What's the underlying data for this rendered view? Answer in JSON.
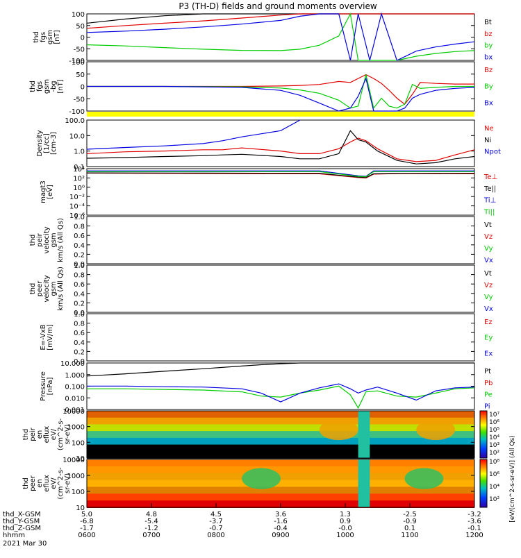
{
  "title": "P3 (TH-D) fields and ground moments overview",
  "date": "2021 Mar 30",
  "colors": {
    "black": "#000000",
    "red": "#e00000",
    "green": "#00cc00",
    "blue": "#0000e0",
    "yellow": "#ffff00"
  },
  "chart_data": [
    {
      "type": "line",
      "id": "fgs_gsm",
      "ylabel": [
        "thd",
        "fgs",
        "gsm",
        "[nT]"
      ],
      "ylim": [
        -100,
        100
      ],
      "yticks": [
        "100",
        "50",
        "0",
        "-50",
        "-100"
      ],
      "legend": [
        {
          "name": "Bt",
          "color": "black"
        },
        {
          "name": "bz",
          "color": "red"
        },
        {
          "name": "by",
          "color": "green"
        },
        {
          "name": "bx",
          "color": "blue"
        }
      ],
      "x": [
        0,
        0.1,
        0.2,
        0.3,
        0.4,
        0.5,
        0.55,
        0.6,
        0.65,
        0.68,
        0.7,
        0.73,
        0.76,
        0.8,
        0.85,
        0.9,
        0.95,
        1.0
      ],
      "series": [
        {
          "name": "Bt",
          "color": "black",
          "values": [
            60,
            78,
            92,
            100,
            100,
            100,
            100,
            100,
            100,
            100,
            100,
            100,
            100,
            100,
            100,
            100,
            100,
            100
          ]
        },
        {
          "name": "bz",
          "color": "red",
          "values": [
            38,
            50,
            60,
            70,
            82,
            95,
            100,
            100,
            100,
            100,
            100,
            100,
            100,
            100,
            100,
            100,
            100,
            100
          ]
        },
        {
          "name": "by",
          "color": "green",
          "values": [
            -33,
            -38,
            -45,
            -52,
            -57,
            -58,
            -52,
            -35,
            5,
            100,
            -100,
            -100,
            -100,
            -100,
            -82,
            -70,
            -62,
            -58
          ]
        },
        {
          "name": "bx",
          "color": "blue",
          "values": [
            20,
            26,
            34,
            44,
            56,
            72,
            90,
            100,
            100,
            -100,
            100,
            -100,
            100,
            -100,
            -60,
            -42,
            -30,
            -20
          ]
        }
      ]
    },
    {
      "type": "line",
      "id": "fgs_gsm_bg",
      "ylabel": [
        "thd",
        "fgs",
        "gsm",
        "-bg",
        "[nT]"
      ],
      "ylim": [
        -125,
        125
      ],
      "yticks": [
        "100",
        "50",
        "0",
        "-50",
        "-100"
      ],
      "legend": [
        {
          "name": "Bz",
          "color": "red"
        },
        {
          "name": "By",
          "color": "green"
        },
        {
          "name": "Bx",
          "color": "blue"
        }
      ],
      "x": [
        0,
        0.2,
        0.4,
        0.5,
        0.55,
        0.6,
        0.65,
        0.68,
        0.7,
        0.72,
        0.74,
        0.76,
        0.78,
        0.8,
        0.82,
        0.84,
        0.86,
        0.9,
        0.95,
        1.0
      ],
      "series": [
        {
          "name": "Bz",
          "color": "red",
          "values": [
            0,
            0,
            0,
            2,
            5,
            10,
            25,
            20,
            40,
            60,
            40,
            15,
            -20,
            -60,
            -90,
            -40,
            20,
            15,
            12,
            12
          ]
        },
        {
          "name": "By",
          "color": "green",
          "values": [
            0,
            0,
            -2,
            -8,
            -18,
            -35,
            -70,
            -110,
            -100,
            60,
            -110,
            -60,
            -100,
            -110,
            -90,
            10,
            -10,
            -5,
            0,
            0
          ]
        },
        {
          "name": "Bx",
          "color": "blue",
          "values": [
            0,
            0,
            -5,
            -20,
            -45,
            -85,
            -125,
            -110,
            -50,
            40,
            -125,
            -125,
            -125,
            -125,
            -110,
            -60,
            -40,
            -20,
            -10,
            -5
          ]
        }
      ]
    },
    {
      "type": "line",
      "id": "density",
      "ylog": true,
      "ylabel": [
        "Density",
        "[1/cc]",
        "[cm-3]"
      ],
      "ylim": [
        0.05,
        200
      ],
      "yticks": [
        "100.0",
        "10.0",
        "1.0",
        "0.1"
      ],
      "legend": [
        {
          "name": "Ne",
          "color": "red"
        },
        {
          "name": "Ni",
          "color": "black"
        },
        {
          "name": "Npot",
          "color": "blue"
        },
        {
          "name": "",
          "color": "black"
        }
      ],
      "x": [
        0,
        0.1,
        0.2,
        0.3,
        0.35,
        0.4,
        0.5,
        0.55,
        0.6,
        0.65,
        0.68,
        0.7,
        0.72,
        0.75,
        0.8,
        0.85,
        0.9,
        0.95,
        1.0
      ],
      "series": [
        {
          "name": "Ne",
          "color": "red",
          "values": [
            0.5,
            0.7,
            0.8,
            1.0,
            1.0,
            1.4,
            0.8,
            0.5,
            0.5,
            1.2,
            4,
            8,
            5,
            1.2,
            0.2,
            0.12,
            0.15,
            0.4,
            1.0
          ]
        },
        {
          "name": "Ni",
          "color": "black",
          "values": [
            0.22,
            0.25,
            0.3,
            0.35,
            0.4,
            0.45,
            0.3,
            0.2,
            0.2,
            0.5,
            30,
            6,
            4,
            0.8,
            0.15,
            0.08,
            0.1,
            0.2,
            0.3
          ]
        },
        {
          "name": "Npot",
          "color": "blue",
          "values": [
            1.1,
            1.5,
            2,
            3,
            5,
            10,
            30,
            200,
            null,
            null,
            null,
            null,
            null,
            null,
            null,
            null,
            null,
            null,
            null
          ]
        }
      ]
    },
    {
      "type": "line",
      "id": "magt3",
      "ylog": true,
      "ylabel": [
        "magt3",
        "[eV]"
      ],
      "ylim": [
        1e-07,
        10000.0
      ],
      "yticks": [
        "10⁴",
        "10²",
        "10⁰",
        "10⁻²",
        "10⁻⁴",
        "10⁻⁶"
      ],
      "legend": [
        {
          "name": "Te⊥",
          "color": "red"
        },
        {
          "name": "Te||",
          "color": "black"
        },
        {
          "name": "Ti⊥",
          "color": "blue"
        },
        {
          "name": "Ti||",
          "color": "green"
        }
      ],
      "x": [
        0,
        0.3,
        0.6,
        0.7,
        0.72,
        0.74,
        0.78,
        0.82,
        1.0
      ],
      "series": [
        {
          "name": "Te⊥",
          "color": "red",
          "values": [
            900,
            700,
            600,
            80,
            60,
            500,
            600,
            700,
            600
          ]
        },
        {
          "name": "Te||",
          "color": "black",
          "values": [
            1000,
            900,
            800,
            100,
            80,
            600,
            700,
            800,
            800
          ]
        },
        {
          "name": "Ti⊥",
          "color": "blue",
          "values": [
            3000,
            3000,
            3000,
            200,
            150,
            3000,
            3000,
            3000,
            3000
          ]
        },
        {
          "name": "Ti||",
          "color": "green",
          "values": [
            2000,
            2000,
            2000,
            150,
            120,
            2000,
            2000,
            2000,
            2000
          ]
        }
      ]
    },
    {
      "type": "line",
      "id": "peir_velocity",
      "ylabel": [
        "thd",
        "peir",
        "velocity",
        "gsm",
        "km/s (All Qs)"
      ],
      "ylim": [
        0,
        1
      ],
      "yticks": [
        "1.0",
        "0.8",
        "0.6",
        "0.4",
        "0.2",
        "0.0"
      ],
      "legend": [
        {
          "name": "Vt",
          "color": "black"
        },
        {
          "name": "Vz",
          "color": "red"
        },
        {
          "name": "Vy",
          "color": "green"
        },
        {
          "name": "Vx",
          "color": "blue"
        }
      ],
      "series": []
    },
    {
      "type": "line",
      "id": "peer_velocity",
      "ylabel": [
        "thd",
        "peer",
        "velocity",
        "gsm",
        "km/s (All Qs)"
      ],
      "ylim": [
        0,
        1
      ],
      "yticks": [
        "1.0",
        "0.8",
        "0.6",
        "0.4",
        "0.2",
        "0.0"
      ],
      "legend": [
        {
          "name": "Vt",
          "color": "black"
        },
        {
          "name": "Vz",
          "color": "red"
        },
        {
          "name": "Vy",
          "color": "green"
        },
        {
          "name": "Vx",
          "color": "blue"
        }
      ],
      "series": []
    },
    {
      "type": "line",
      "id": "e_field",
      "ylabel": [
        "E=-VxB",
        "[mV/m]"
      ],
      "ylim": [
        0,
        1
      ],
      "yticks": [
        "1.0",
        "0.8",
        "0.6",
        "0.4",
        "0.2",
        "0.0"
      ],
      "legend": [
        {
          "name": "Ez",
          "color": "red"
        },
        {
          "name": "Ey",
          "color": "green"
        },
        {
          "name": "Ex",
          "color": "blue"
        }
      ],
      "series": []
    },
    {
      "type": "line",
      "id": "pressure",
      "ylog": true,
      "ylabel": [
        "Pressure",
        "[nPa]"
      ],
      "ylim": [
        0.0007,
        30
      ],
      "yticks": [
        "10.000",
        "1.000",
        "0.100",
        "0.010",
        "0.001"
      ],
      "legend": [
        {
          "name": "Pt",
          "color": "black"
        },
        {
          "name": "Pb",
          "color": "red"
        },
        {
          "name": "Pe",
          "color": "green"
        },
        {
          "name": "Pi",
          "color": "blue"
        }
      ],
      "x": [
        0,
        0.1,
        0.2,
        0.3,
        0.4,
        0.45,
        0.5,
        0.55,
        0.6,
        0.65,
        0.68,
        0.7,
        0.72,
        0.75,
        0.8,
        0.85,
        0.9,
        0.95,
        1.0
      ],
      "series": [
        {
          "name": "Pt",
          "color": "black",
          "values": [
            1.5,
            2.5,
            4.5,
            8,
            15,
            20,
            25,
            30,
            30,
            30,
            30,
            30,
            30,
            30,
            30,
            30,
            30,
            30,
            30
          ]
        },
        {
          "name": "Pb",
          "color": "red",
          "values": [
            null,
            null,
            null,
            null,
            null,
            null,
            null,
            null,
            null,
            null,
            null,
            null,
            null,
            null,
            null,
            null,
            null,
            null,
            null
          ]
        },
        {
          "name": "Pe",
          "color": "green",
          "values": [
            0.08,
            0.08,
            0.07,
            0.06,
            0.04,
            0.015,
            0.012,
            0.03,
            0.06,
            0.15,
            0.02,
            0.001,
            0.04,
            0.05,
            0.015,
            0.012,
            0.03,
            0.08,
            0.1
          ]
        },
        {
          "name": "Pi",
          "color": "blue",
          "values": [
            0.15,
            0.15,
            0.13,
            0.12,
            0.08,
            0.03,
            0.004,
            0.03,
            0.1,
            0.25,
            0.08,
            0.03,
            0.06,
            0.12,
            0.03,
            0.006,
            0.05,
            0.1,
            0.12
          ]
        }
      ]
    },
    {
      "type": "heatmap",
      "id": "peir_eflux",
      "ylabel": [
        "thd",
        "peir",
        "en",
        "eflux",
        "eV/",
        "(cm^2-s-",
        "sr-eV)"
      ],
      "yticks": [
        "10000",
        "1000",
        "100",
        "10"
      ]
    },
    {
      "type": "heatmap",
      "id": "peer_eflux",
      "ylabel": [
        "thd",
        "peer",
        "en",
        "eflux",
        "eV/",
        "(cm^2-s-",
        "sr-eV)"
      ],
      "yticks": [
        "10000",
        "1000",
        "100",
        "10"
      ]
    }
  ],
  "colorbar": {
    "label": "[eV/(cm^2-s-sr-eV)] (All Qs)",
    "ticks": [
      "10⁷",
      "10⁶",
      "10⁵",
      "10⁴",
      "10³",
      "10²"
    ],
    "ticks2": [
      "10⁸",
      "10⁶",
      "10⁴",
      "10²"
    ]
  },
  "x_axis": {
    "rows": [
      {
        "label": "thd_X-GSM",
        "values": [
          "5.0",
          "4.8",
          "4.5",
          "3.6",
          "1.3",
          "-2.5",
          "-3.2"
        ]
      },
      {
        "label": "thd_Y-GSM",
        "values": [
          "-6.8",
          "-5.4",
          "-3.7",
          "-1.6",
          "0.9",
          "-0.9",
          "-3.6"
        ]
      },
      {
        "label": "thd_Z-GSM",
        "values": [
          "-1.7",
          "-1.2",
          "-0.7",
          "-0.4",
          "-0.0",
          "0.1",
          "-0.1"
        ]
      },
      {
        "label": "hhmm",
        "values": [
          "0600",
          "0700",
          "0800",
          "0900",
          "1000",
          "1100",
          "1200"
        ]
      }
    ]
  }
}
